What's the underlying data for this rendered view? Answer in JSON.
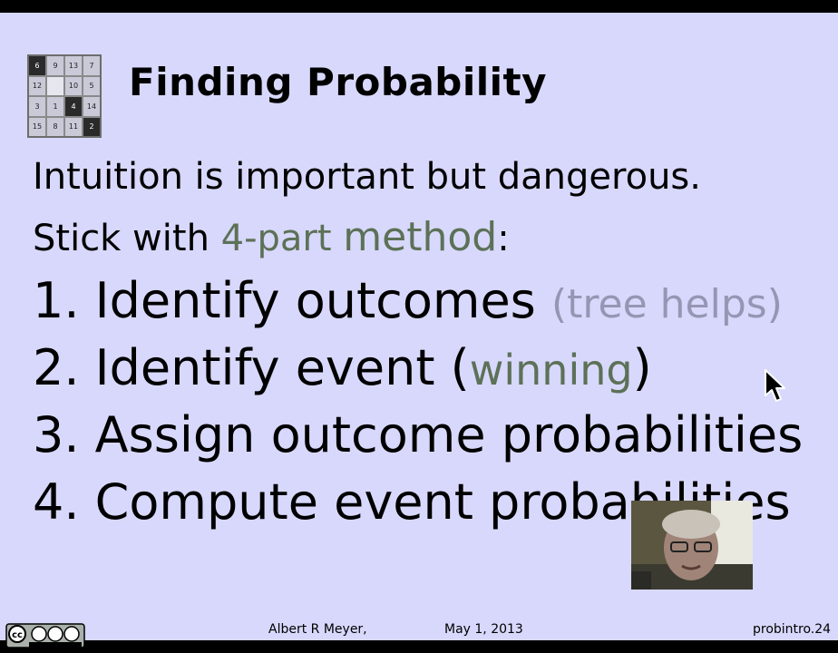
{
  "logo": {
    "cells": [
      "6",
      "9",
      "13",
      "7",
      "12",
      "",
      "10",
      "5",
      "3",
      "1",
      "4",
      "14",
      "15",
      "8",
      "11",
      "2"
    ],
    "dark_indices": [
      0,
      10,
      15
    ]
  },
  "title": "Finding Probability",
  "intro": {
    "line1": "Intuition is important but dangerous.",
    "line2_prefix": "Stick with ",
    "line2_accent_small": "4-part ",
    "line2_accent_big": "method",
    "line2_suffix": ":"
  },
  "steps": {
    "s1_main": "1. Identify outcomes ",
    "s1_hint": "(tree helps)",
    "s2_main": "2. Identify event (",
    "s2_accent": "winning",
    "s2_end": ")",
    "s3": "3. Assign outcome probabilities",
    "s4": "4. Compute event probabilities"
  },
  "footer": {
    "author": "Albert R Meyer,",
    "date": "May 1, 2013",
    "page": "probintro.24"
  },
  "license_badge": {
    "text": "cc BY NC SA"
  },
  "colors": {
    "background": "#d8d8fc",
    "accent": "#5c7157",
    "hint": "#9696b4"
  }
}
